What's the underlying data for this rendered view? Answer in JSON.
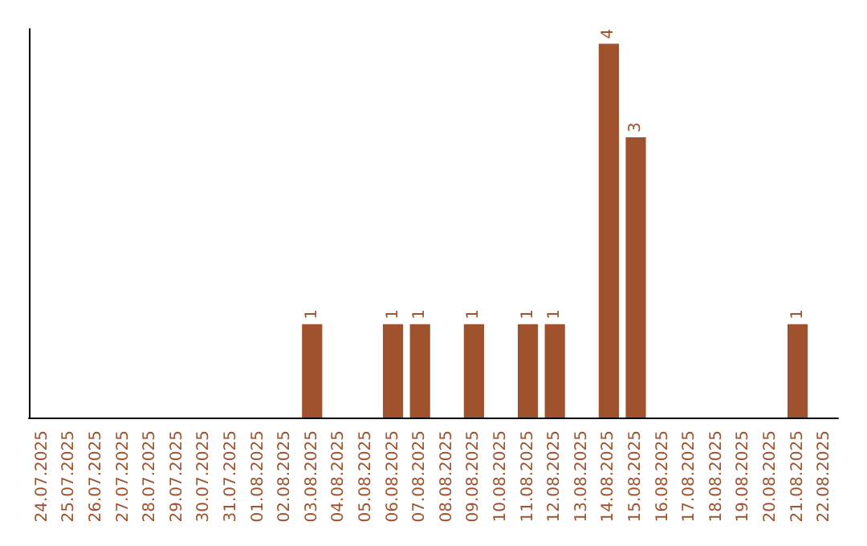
{
  "chart_data": {
    "type": "bar",
    "categories": [
      "24.07.2025",
      "25.07.2025",
      "26.07.2025",
      "27.07.2025",
      "28.07.2025",
      "29.07.2025",
      "30.07.2025",
      "31.07.2025",
      "01.08.2025",
      "02.08.2025",
      "03.08.2025",
      "04.08.2025",
      "05.08.2025",
      "06.08.2025",
      "07.08.2025",
      "08.08.2025",
      "09.08.2025",
      "10.08.2025",
      "11.08.2025",
      "12.08.2025",
      "13.08.2025",
      "14.08.2025",
      "15.08.2025",
      "16.08.2025",
      "17.08.2025",
      "18.08.2025",
      "19.08.2025",
      "20.08.2025",
      "21.08.2025",
      "22.08.2025"
    ],
    "values": [
      0,
      0,
      0,
      0,
      0,
      0,
      0,
      0,
      0,
      0,
      1,
      0,
      0,
      1,
      1,
      0,
      1,
      0,
      1,
      1,
      0,
      4,
      3,
      0,
      0,
      0,
      0,
      0,
      1,
      0
    ],
    "value_labels": [
      null,
      null,
      null,
      null,
      null,
      null,
      null,
      null,
      null,
      null,
      "1",
      null,
      null,
      "1",
      "1",
      null,
      "1",
      null,
      "1",
      "1",
      null,
      "4",
      "3",
      null,
      null,
      null,
      null,
      null,
      "1",
      null
    ],
    "color": "#a0522d",
    "grid": false,
    "tick_labels": "x"
  }
}
